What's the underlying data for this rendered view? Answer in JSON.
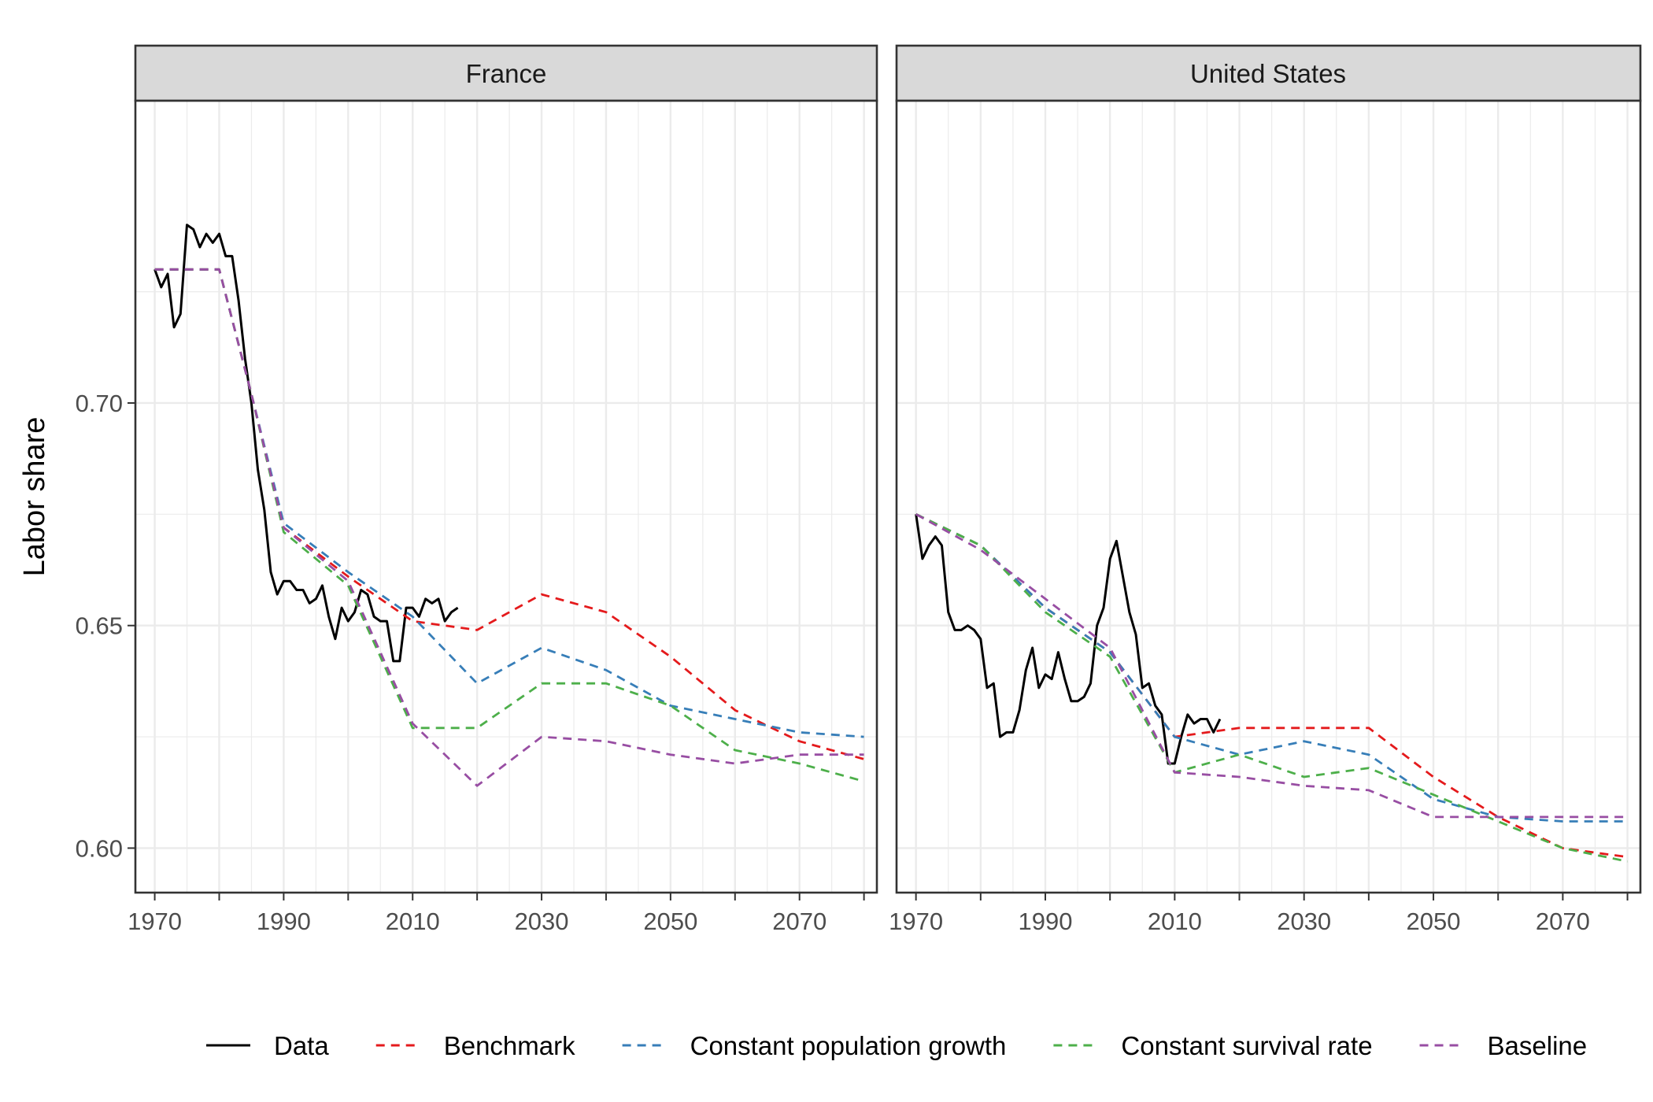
{
  "chart_data": {
    "type": "line",
    "ylabel": "Labor share",
    "xlabel": "",
    "xlim": [
      1967,
      2082
    ],
    "ylim": [
      0.59,
      0.7679
    ],
    "x_ticks": [
      1970,
      1990,
      2010,
      2030,
      2050,
      2070
    ],
    "y_ticks": [
      0.6,
      0.65,
      0.7
    ],
    "y_tick_labels": [
      "0.60",
      "0.65",
      "0.70"
    ],
    "grid": true,
    "legend_position": "bottom",
    "legend": [
      {
        "name": "Data",
        "color": "#000000",
        "dash": "solid"
      },
      {
        "name": "Benchmark",
        "color": "#e41a1c",
        "dash": "dashed"
      },
      {
        "name": "Constant population growth",
        "color": "#377eb8",
        "dash": "dashed"
      },
      {
        "name": "Constant survival rate",
        "color": "#4daf4a",
        "dash": "dashed"
      },
      {
        "name": "Baseline",
        "color": "#984ea3",
        "dash": "dashed"
      }
    ],
    "panels": [
      {
        "title": "France",
        "series": [
          {
            "name": "Data",
            "points": [
              [
                1970,
                0.73
              ],
              [
                1971,
                0.726
              ],
              [
                1972,
                0.729
              ],
              [
                1973,
                0.717
              ],
              [
                1974,
                0.72
              ],
              [
                1975,
                0.74
              ],
              [
                1976,
                0.739
              ],
              [
                1977,
                0.735
              ],
              [
                1978,
                0.738
              ],
              [
                1979,
                0.736
              ],
              [
                1980,
                0.738
              ],
              [
                1981,
                0.733
              ],
              [
                1982,
                0.733
              ],
              [
                1983,
                0.723
              ],
              [
                1984,
                0.71
              ],
              [
                1985,
                0.7
              ],
              [
                1986,
                0.685
              ],
              [
                1987,
                0.676
              ],
              [
                1988,
                0.662
              ],
              [
                1989,
                0.657
              ],
              [
                1990,
                0.66
              ],
              [
                1991,
                0.66
              ],
              [
                1992,
                0.658
              ],
              [
                1993,
                0.658
              ],
              [
                1994,
                0.655
              ],
              [
                1995,
                0.656
              ],
              [
                1996,
                0.659
              ],
              [
                1997,
                0.652
              ],
              [
                1998,
                0.647
              ],
              [
                1999,
                0.654
              ],
              [
                2000,
                0.651
              ],
              [
                2001,
                0.653
              ],
              [
                2002,
                0.658
              ],
              [
                2003,
                0.657
              ],
              [
                2004,
                0.652
              ],
              [
                2005,
                0.651
              ],
              [
                2006,
                0.651
              ],
              [
                2007,
                0.642
              ],
              [
                2008,
                0.642
              ],
              [
                2009,
                0.654
              ],
              [
                2010,
                0.654
              ],
              [
                2011,
                0.652
              ],
              [
                2012,
                0.656
              ],
              [
                2013,
                0.655
              ],
              [
                2014,
                0.656
              ],
              [
                2015,
                0.651
              ],
              [
                2016,
                0.653
              ],
              [
                2017,
                0.654
              ]
            ]
          },
          {
            "name": "Benchmark",
            "points": [
              [
                1970,
                0.73
              ],
              [
                1980,
                0.73
              ],
              [
                1985,
                0.702
              ],
              [
                1990,
                0.672
              ],
              [
                2000,
                0.661
              ],
              [
                2010,
                0.651
              ],
              [
                2020,
                0.649
              ],
              [
                2030,
                0.657
              ],
              [
                2040,
                0.653
              ],
              [
                2050,
                0.643
              ],
              [
                2060,
                0.631
              ],
              [
                2070,
                0.624
              ],
              [
                2080,
                0.62
              ]
            ]
          },
          {
            "name": "Constant population growth",
            "points": [
              [
                1970,
                0.73
              ],
              [
                1980,
                0.73
              ],
              [
                1985,
                0.702
              ],
              [
                1990,
                0.673
              ],
              [
                2000,
                0.662
              ],
              [
                2010,
                0.652
              ],
              [
                2020,
                0.637
              ],
              [
                2030,
                0.645
              ],
              [
                2040,
                0.64
              ],
              [
                2050,
                0.632
              ],
              [
                2060,
                0.629
              ],
              [
                2070,
                0.626
              ],
              [
                2080,
                0.625
              ]
            ]
          },
          {
            "name": "Constant survival rate",
            "points": [
              [
                1970,
                0.73
              ],
              [
                1980,
                0.73
              ],
              [
                1985,
                0.702
              ],
              [
                1990,
                0.671
              ],
              [
                2000,
                0.659
              ],
              [
                2010,
                0.627
              ],
              [
                2020,
                0.627
              ],
              [
                2030,
                0.637
              ],
              [
                2040,
                0.637
              ],
              [
                2050,
                0.632
              ],
              [
                2060,
                0.622
              ],
              [
                2070,
                0.619
              ],
              [
                2080,
                0.615
              ]
            ]
          },
          {
            "name": "Baseline",
            "points": [
              [
                1970,
                0.73
              ],
              [
                1980,
                0.73
              ],
              [
                1985,
                0.702
              ],
              [
                1990,
                0.672
              ],
              [
                2000,
                0.66
              ],
              [
                2010,
                0.628
              ],
              [
                2020,
                0.614
              ],
              [
                2030,
                0.625
              ],
              [
                2040,
                0.624
              ],
              [
                2050,
                0.621
              ],
              [
                2060,
                0.619
              ],
              [
                2070,
                0.621
              ],
              [
                2080,
                0.621
              ]
            ]
          }
        ]
      },
      {
        "title": "United States",
        "series": [
          {
            "name": "Data",
            "points": [
              [
                1970,
                0.675
              ],
              [
                1971,
                0.665
              ],
              [
                1972,
                0.668
              ],
              [
                1973,
                0.67
              ],
              [
                1974,
                0.668
              ],
              [
                1975,
                0.653
              ],
              [
                1976,
                0.649
              ],
              [
                1977,
                0.649
              ],
              [
                1978,
                0.65
              ],
              [
                1979,
                0.649
              ],
              [
                1980,
                0.647
              ],
              [
                1981,
                0.636
              ],
              [
                1982,
                0.637
              ],
              [
                1983,
                0.625
              ],
              [
                1984,
                0.626
              ],
              [
                1985,
                0.626
              ],
              [
                1986,
                0.631
              ],
              [
                1987,
                0.64
              ],
              [
                1988,
                0.645
              ],
              [
                1989,
                0.636
              ],
              [
                1990,
                0.639
              ],
              [
                1991,
                0.638
              ],
              [
                1992,
                0.644
              ],
              [
                1993,
                0.638
              ],
              [
                1994,
                0.633
              ],
              [
                1995,
                0.633
              ],
              [
                1996,
                0.634
              ],
              [
                1997,
                0.637
              ],
              [
                1998,
                0.65
              ],
              [
                1999,
                0.654
              ],
              [
                2000,
                0.665
              ],
              [
                2001,
                0.669
              ],
              [
                2002,
                0.661
              ],
              [
                2003,
                0.653
              ],
              [
                2004,
                0.648
              ],
              [
                2005,
                0.636
              ],
              [
                2006,
                0.637
              ],
              [
                2007,
                0.632
              ],
              [
                2008,
                0.63
              ],
              [
                2009,
                0.619
              ],
              [
                2010,
                0.619
              ],
              [
                2011,
                0.625
              ],
              [
                2012,
                0.63
              ],
              [
                2013,
                0.628
              ],
              [
                2014,
                0.629
              ],
              [
                2015,
                0.629
              ],
              [
                2016,
                0.626
              ],
              [
                2017,
                0.629
              ]
            ]
          },
          {
            "name": "Benchmark",
            "points": [
              [
                1970,
                0.675
              ],
              [
                1980,
                0.668
              ],
              [
                1990,
                0.654
              ],
              [
                2000,
                0.644
              ],
              [
                2010,
                0.625
              ],
              [
                2020,
                0.627
              ],
              [
                2030,
                0.627
              ],
              [
                2040,
                0.627
              ],
              [
                2050,
                0.616
              ],
              [
                2060,
                0.607
              ],
              [
                2070,
                0.6
              ],
              [
                2080,
                0.598
              ]
            ]
          },
          {
            "name": "Constant population growth",
            "points": [
              [
                1970,
                0.675
              ],
              [
                1980,
                0.668
              ],
              [
                1990,
                0.654
              ],
              [
                2000,
                0.644
              ],
              [
                2010,
                0.625
              ],
              [
                2020,
                0.621
              ],
              [
                2030,
                0.624
              ],
              [
                2040,
                0.621
              ],
              [
                2050,
                0.611
              ],
              [
                2060,
                0.607
              ],
              [
                2070,
                0.606
              ],
              [
                2080,
                0.606
              ]
            ]
          },
          {
            "name": "Constant survival rate",
            "points": [
              [
                1970,
                0.675
              ],
              [
                1980,
                0.668
              ],
              [
                1990,
                0.653
              ],
              [
                2000,
                0.643
              ],
              [
                2010,
                0.617
              ],
              [
                2020,
                0.621
              ],
              [
                2030,
                0.616
              ],
              [
                2040,
                0.618
              ],
              [
                2050,
                0.612
              ],
              [
                2060,
                0.606
              ],
              [
                2070,
                0.6
              ],
              [
                2080,
                0.597
              ]
            ]
          },
          {
            "name": "Baseline",
            "points": [
              [
                1970,
                0.675
              ],
              [
                1980,
                0.667
              ],
              [
                1990,
                0.656
              ],
              [
                2000,
                0.645
              ],
              [
                2010,
                0.617
              ],
              [
                2020,
                0.616
              ],
              [
                2030,
                0.614
              ],
              [
                2040,
                0.613
              ],
              [
                2050,
                0.607
              ],
              [
                2060,
                0.607
              ],
              [
                2070,
                0.607
              ],
              [
                2080,
                0.607
              ]
            ]
          }
        ]
      }
    ]
  }
}
